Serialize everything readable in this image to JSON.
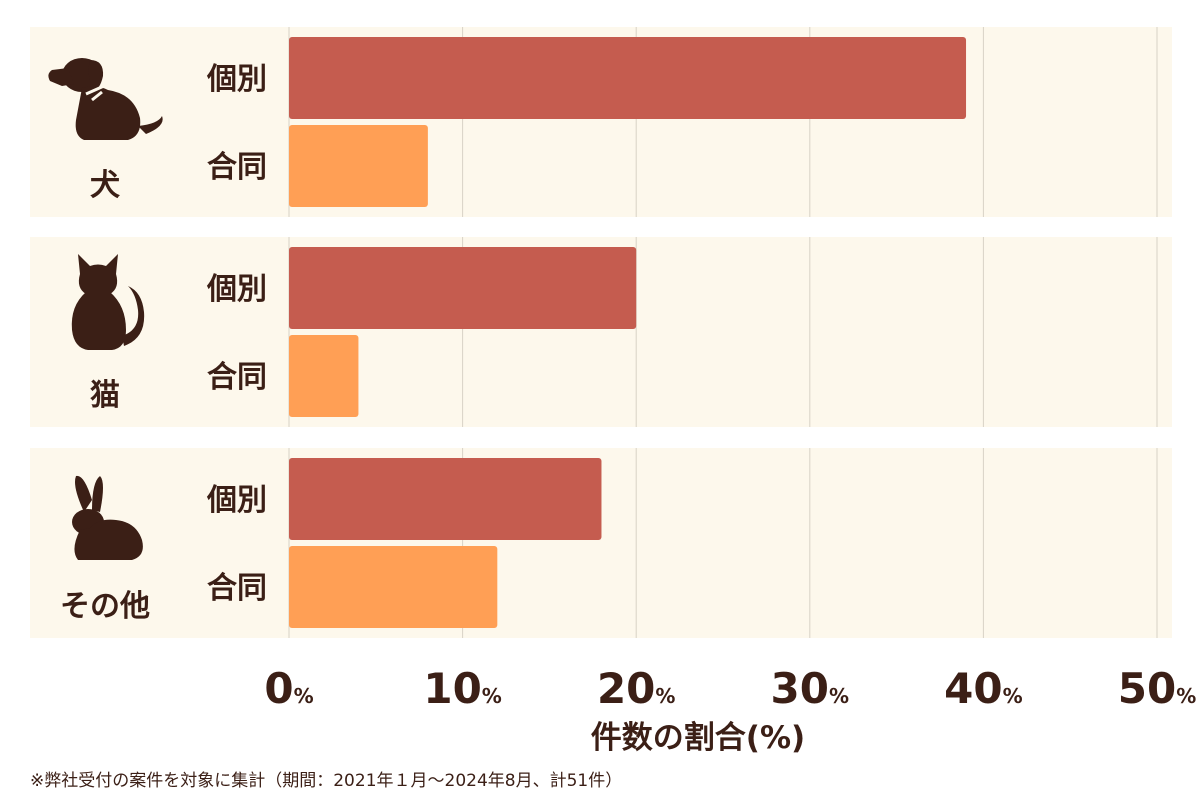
{
  "chart_data": {
    "type": "bar",
    "orientation": "horizontal",
    "groups": [
      {
        "label": "犬",
        "icon": "dog-icon"
      },
      {
        "label": "猫",
        "icon": "cat-icon"
      },
      {
        "label": "その他",
        "icon": "rabbit-icon"
      }
    ],
    "series": [
      {
        "name": "個別",
        "color": "#c55c4f",
        "values": [
          39,
          20,
          18
        ]
      },
      {
        "name": "合同",
        "color": "#ff9f55",
        "values": [
          8,
          4,
          12
        ]
      }
    ],
    "xlabel": "件数の割合(%)",
    "xlim": [
      0,
      50
    ],
    "xticks": [
      0,
      10,
      20,
      30,
      40,
      50
    ],
    "tick_suffix": "%",
    "grid": true,
    "colors": {
      "panel_bg": "#fdf8ec",
      "grid": "#d8d2c6",
      "text": "#3b1f16",
      "icon": "#3b1f16"
    }
  },
  "footnote": "※弊社受付の案件を対象に集計（期間：2021年１月～2024年8月、計51件）"
}
